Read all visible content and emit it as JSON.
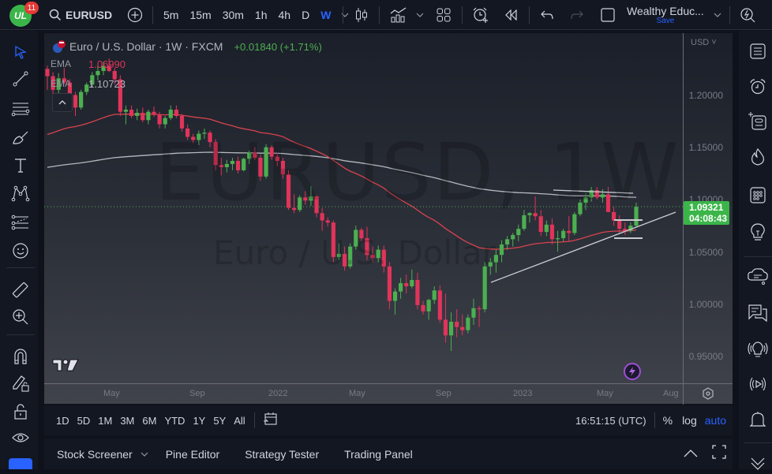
{
  "topbar": {
    "notification_count": "11",
    "symbol": "EURUSD",
    "intervals": [
      "5m",
      "15m",
      "30m",
      "1h",
      "4h",
      "D",
      "W"
    ],
    "active_interval": "W",
    "layout_name": "Wealthy Educ...",
    "save_label": "Save"
  },
  "legend": {
    "title": "Euro / U.S. Dollar · 1W · FXCM",
    "change": "+0.01840 (+1.71%)",
    "ema1_label": "EMA",
    "ema1_value": "1.06990",
    "ema2_label": "EMA",
    "ema2_value": "1.10723"
  },
  "watermark": {
    "symbol": "EURUSD, 1W",
    "name": "Euro / U.S. Dollar"
  },
  "price_axis": {
    "currency": "USD",
    "ticks": [
      "1.20000",
      "1.15000",
      "1.10000",
      "1.05000",
      "1.00000",
      "0.95000"
    ],
    "current_price": "1.09321",
    "countdown": "04:08:43"
  },
  "time_axis": {
    "ticks": [
      "May",
      "Sep",
      "2022",
      "May",
      "Sep",
      "2023",
      "May",
      "Aug"
    ]
  },
  "bottom_range": {
    "ranges": [
      "1D",
      "5D",
      "1M",
      "3M",
      "6M",
      "YTD",
      "1Y",
      "5Y",
      "All"
    ],
    "clock": "16:51:15 (UTC)",
    "percent_label": "%",
    "log_label": "log",
    "auto_label": "auto"
  },
  "bottom_panel": {
    "tabs": [
      "Stock Screener",
      "Pine Editor",
      "Strategy Tester",
      "Trading Panel"
    ]
  },
  "colors": {
    "up": "#4caf50",
    "down": "#e0345a",
    "ema_fast": "#d8434e",
    "ema_slow": "#b7b9c0",
    "accent": "#2962ff",
    "price_label": "#3bb54a"
  },
  "chart_data": {
    "type": "candlestick",
    "title": "Euro / U.S. Dollar · 1W · FXCM",
    "x_ticks": [
      "May",
      "Sep",
      "2022",
      "May",
      "Sep",
      "2023",
      "May",
      "Aug"
    ],
    "y_ticks": [
      1.2,
      1.15,
      1.1,
      1.05,
      1.0,
      0.95
    ],
    "ylim": [
      0.93,
      1.24
    ],
    "current_price": 1.09321,
    "ema_fast_last": 1.0699,
    "ema_slow_last": 1.10723,
    "candles_ohlc_approx": [
      [
        1.225,
        1.228,
        1.205,
        1.218
      ],
      [
        1.218,
        1.222,
        1.2,
        1.205
      ],
      [
        1.205,
        1.221,
        1.199,
        1.216
      ],
      [
        1.216,
        1.226,
        1.21,
        1.212
      ],
      [
        1.212,
        1.215,
        1.195,
        1.2
      ],
      [
        1.2,
        1.203,
        1.18,
        1.188
      ],
      [
        1.188,
        1.205,
        1.186,
        1.203
      ],
      [
        1.203,
        1.212,
        1.2,
        1.21
      ],
      [
        1.21,
        1.222,
        1.207,
        1.219
      ],
      [
        1.219,
        1.228,
        1.214,
        1.223
      ],
      [
        1.223,
        1.232,
        1.219,
        1.228
      ],
      [
        1.228,
        1.235,
        1.222,
        1.223
      ],
      [
        1.223,
        1.226,
        1.21,
        1.215
      ],
      [
        1.215,
        1.219,
        1.18,
        1.184
      ],
      [
        1.184,
        1.19,
        1.172,
        1.186
      ],
      [
        1.186,
        1.19,
        1.178,
        1.18
      ],
      [
        1.18,
        1.187,
        1.176,
        1.183
      ],
      [
        1.183,
        1.188,
        1.174,
        1.176
      ],
      [
        1.176,
        1.186,
        1.172,
        1.184
      ],
      [
        1.184,
        1.189,
        1.179,
        1.181
      ],
      [
        1.181,
        1.184,
        1.168,
        1.172
      ],
      [
        1.172,
        1.18,
        1.168,
        1.178
      ],
      [
        1.178,
        1.19,
        1.176,
        1.186
      ],
      [
        1.186,
        1.19,
        1.178,
        1.18
      ],
      [
        1.18,
        1.182,
        1.165,
        1.168
      ],
      [
        1.168,
        1.172,
        1.157,
        1.16
      ],
      [
        1.16,
        1.163,
        1.154,
        1.157
      ],
      [
        1.157,
        1.166,
        1.152,
        1.163
      ],
      [
        1.163,
        1.168,
        1.158,
        1.164
      ],
      [
        1.164,
        1.166,
        1.15,
        1.155
      ],
      [
        1.155,
        1.158,
        1.128,
        1.133
      ],
      [
        1.133,
        1.14,
        1.123,
        1.131
      ],
      [
        1.131,
        1.138,
        1.126,
        1.134
      ],
      [
        1.134,
        1.14,
        1.128,
        1.137
      ],
      [
        1.137,
        1.141,
        1.125,
        1.128
      ],
      [
        1.128,
        1.14,
        1.127,
        1.139
      ],
      [
        1.139,
        1.147,
        1.134,
        1.145
      ],
      [
        1.145,
        1.15,
        1.138,
        1.14
      ],
      [
        1.14,
        1.143,
        1.118,
        1.122
      ],
      [
        1.122,
        1.153,
        1.12,
        1.15
      ],
      [
        1.15,
        1.152,
        1.138,
        1.141
      ],
      [
        1.141,
        1.145,
        1.132,
        1.137
      ],
      [
        1.137,
        1.14,
        1.12,
        1.124
      ],
      [
        1.124,
        1.128,
        1.09,
        1.092
      ],
      [
        1.092,
        1.105,
        1.087,
        1.09
      ],
      [
        1.09,
        1.104,
        1.088,
        1.102
      ],
      [
        1.102,
        1.108,
        1.095,
        1.099
      ],
      [
        1.099,
        1.113,
        1.094,
        1.103
      ],
      [
        1.103,
        1.104,
        1.083,
        1.087
      ],
      [
        1.087,
        1.092,
        1.07,
        1.08
      ],
      [
        1.08,
        1.083,
        1.074,
        1.078
      ],
      [
        1.078,
        1.08,
        1.04,
        1.045
      ],
      [
        1.045,
        1.058,
        1.042,
        1.048
      ],
      [
        1.048,
        1.055,
        1.032,
        1.036
      ],
      [
        1.036,
        1.058,
        1.034,
        1.055
      ],
      [
        1.055,
        1.075,
        1.052,
        1.071
      ],
      [
        1.071,
        1.073,
        1.06,
        1.063
      ],
      [
        1.063,
        1.074,
        1.042,
        1.047
      ],
      [
        1.047,
        1.055,
        1.04,
        1.044
      ],
      [
        1.044,
        1.056,
        1.04,
        1.052
      ],
      [
        1.052,
        1.056,
        1.03,
        1.036
      ],
      [
        1.036,
        1.04,
        0.995,
        1.003
      ],
      [
        1.003,
        1.015,
        0.99,
        1.012
      ],
      [
        1.012,
        1.025,
        1.005,
        1.02
      ],
      [
        1.02,
        1.028,
        1.01,
        1.017
      ],
      [
        1.017,
        1.033,
        1.015,
        1.023
      ],
      [
        1.023,
        1.03,
        0.995,
        0.999
      ],
      [
        0.999,
        1.003,
        0.99,
        0.993
      ],
      [
        0.993,
        1.005,
        0.985,
        1.004
      ],
      [
        1.004,
        1.017,
        1.0,
        1.013
      ],
      [
        1.013,
        1.018,
        0.982,
        0.985
      ],
      [
        0.985,
        1.01,
        0.963,
        0.97
      ],
      [
        0.97,
        0.992,
        0.955,
        0.983
      ],
      [
        0.983,
        0.995,
        0.968,
        0.978
      ],
      [
        0.978,
        0.99,
        0.97,
        0.975
      ],
      [
        0.975,
        0.99,
        0.972,
        0.987
      ],
      [
        0.987,
        1.005,
        0.98,
        0.996
      ],
      [
        0.996,
        0.998,
        0.978,
        0.995
      ],
      [
        0.995,
        1.04,
        0.992,
        1.036
      ],
      [
        1.036,
        1.044,
        1.028,
        1.04
      ],
      [
        1.04,
        1.052,
        1.03,
        1.047
      ],
      [
        1.047,
        1.061,
        1.04,
        1.057
      ],
      [
        1.057,
        1.065,
        1.052,
        1.062
      ],
      [
        1.062,
        1.068,
        1.055,
        1.066
      ],
      [
        1.066,
        1.076,
        1.06,
        1.072
      ],
      [
        1.072,
        1.09,
        1.07,
        1.085
      ],
      [
        1.085,
        1.088,
        1.078,
        1.087
      ],
      [
        1.087,
        1.103,
        1.08,
        1.084
      ],
      [
        1.084,
        1.09,
        1.065,
        1.069
      ],
      [
        1.069,
        1.08,
        1.065,
        1.076
      ],
      [
        1.076,
        1.082,
        1.057,
        1.062
      ],
      [
        1.062,
        1.07,
        1.05,
        1.063
      ],
      [
        1.063,
        1.072,
        1.06,
        1.07
      ],
      [
        1.07,
        1.084,
        1.06,
        1.068
      ],
      [
        1.068,
        1.088,
        1.066,
        1.086
      ],
      [
        1.086,
        1.1,
        1.084,
        1.097
      ],
      [
        1.097,
        1.106,
        1.09,
        1.102
      ],
      [
        1.102,
        1.112,
        1.098,
        1.109
      ],
      [
        1.109,
        1.112,
        1.1,
        1.102
      ],
      [
        1.102,
        1.11,
        1.097,
        1.105
      ],
      [
        1.105,
        1.112,
        1.09,
        1.088
      ],
      [
        1.088,
        1.093,
        1.075,
        1.08
      ],
      [
        1.08,
        1.085,
        1.068,
        1.072
      ],
      [
        1.072,
        1.078,
        1.066,
        1.07
      ],
      [
        1.07,
        1.078,
        1.068,
        1.075
      ],
      [
        1.075,
        1.097,
        1.073,
        1.093
      ]
    ]
  }
}
